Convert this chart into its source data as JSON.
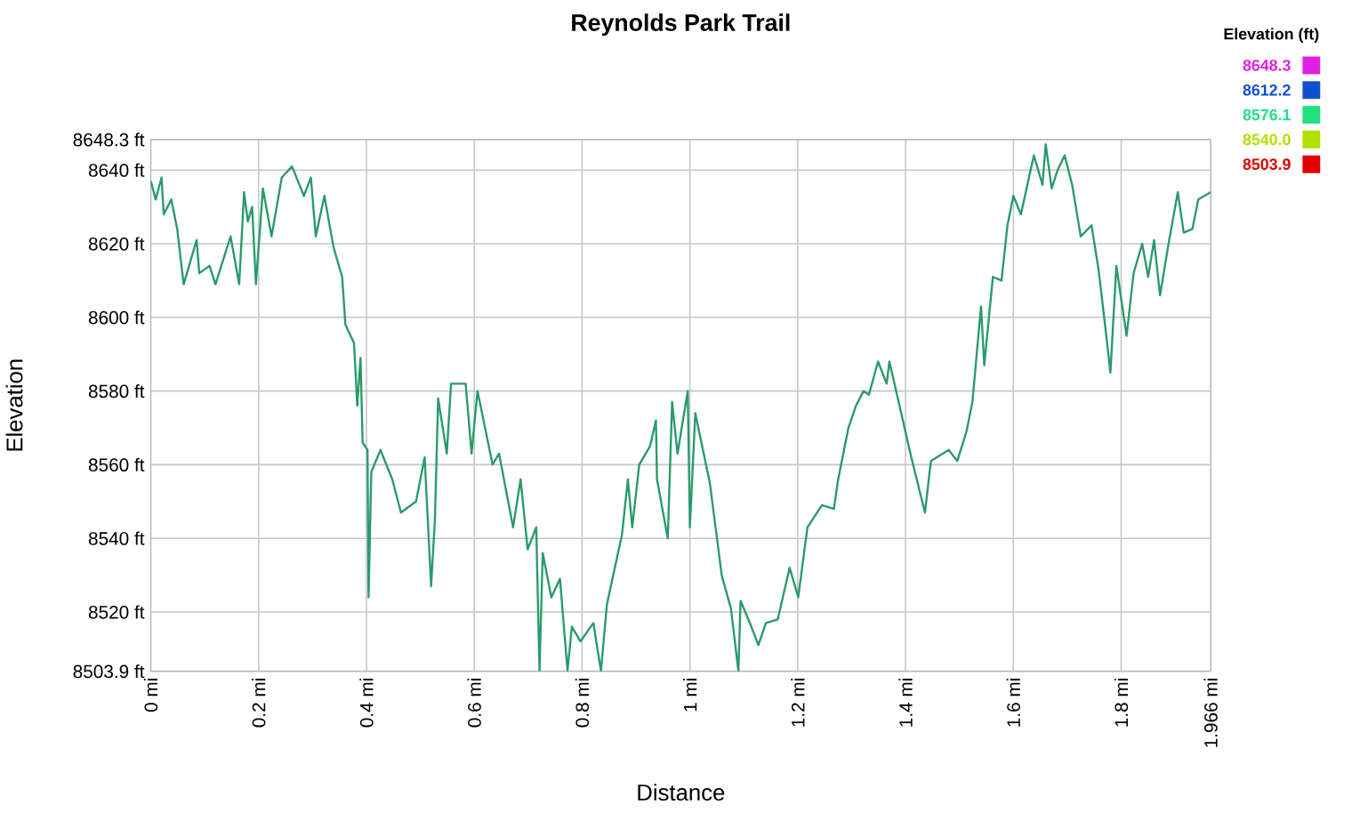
{
  "chart_data": {
    "type": "line",
    "title": "Reynolds Park Trail",
    "xlabel": "Distance",
    "ylabel": "Elevation",
    "clabel": "Elevation (ft)",
    "clim": [
      8503.9,
      8648.3
    ],
    "cticks": [
      {
        "value": 8503.9,
        "label": "8503.9"
      },
      {
        "value": 8540.0,
        "label": "8540.0"
      },
      {
        "value": 8576.1,
        "label": "8576.1"
      },
      {
        "value": 8612.2,
        "label": "8612.2"
      },
      {
        "value": 8648.3,
        "label": "8648.3"
      }
    ],
    "xlim": [
      0,
      1.966
    ],
    "ylim": [
      8503.9,
      8648.3
    ],
    "xticks": [
      {
        "value": 0,
        "label": "0 mi"
      },
      {
        "value": 0.2,
        "label": "0.2 mi"
      },
      {
        "value": 0.4,
        "label": "0.4 mi"
      },
      {
        "value": 0.6,
        "label": "0.6 mi"
      },
      {
        "value": 0.8,
        "label": "0.8 mi"
      },
      {
        "value": 1,
        "label": "1 mi"
      },
      {
        "value": 1.2,
        "label": "1.2 mi"
      },
      {
        "value": 1.4,
        "label": "1.4 mi"
      },
      {
        "value": 1.6,
        "label": "1.6 mi"
      },
      {
        "value": 1.8,
        "label": "1.8 mi"
      },
      {
        "value": 1.966,
        "label": "1.966 mi"
      }
    ],
    "yticks": [
      {
        "value": 8503.9,
        "label": "8503.9 ft"
      },
      {
        "value": 8520,
        "label": "8520 ft"
      },
      {
        "value": 8540,
        "label": "8540 ft"
      },
      {
        "value": 8560,
        "label": "8560 ft"
      },
      {
        "value": 8580,
        "label": "8580 ft"
      },
      {
        "value": 8600,
        "label": "8600 ft"
      },
      {
        "value": 8620,
        "label": "8620 ft"
      },
      {
        "value": 8640,
        "label": "8640 ft"
      },
      {
        "value": 8648.3,
        "label": "8648.3 ft"
      }
    ],
    "grid": true,
    "series": [
      {
        "color": "#2a9a6a",
        "x": [
          0,
          0.009,
          0.02,
          0.024,
          0.038,
          0.049,
          0.061,
          0.085,
          0.09,
          0.109,
          0.12,
          0.148,
          0.164,
          0.173,
          0.18,
          0.188,
          0.195,
          0.208,
          0.224,
          0.243,
          0.262,
          0.284,
          0.297,
          0.306,
          0.322,
          0.339,
          0.355,
          0.361,
          0.377,
          0.383,
          0.389,
          0.393,
          0.402,
          0.404,
          0.409,
          0.426,
          0.448,
          0.464,
          0.492,
          0.508,
          0.52,
          0.527,
          0.533,
          0.549,
          0.557,
          0.584,
          0.595,
          0.606,
          0.634,
          0.646,
          0.672,
          0.686,
          0.699,
          0.715,
          0.721,
          0.727,
          0.743,
          0.759,
          0.773,
          0.781,
          0.797,
          0.821,
          0.835,
          0.846,
          0.874,
          0.885,
          0.893,
          0.906,
          0.926,
          0.937,
          0.939,
          0.959,
          0.967,
          0.977,
          0.996,
          1.0,
          1.01,
          1.037,
          1.059,
          1.076,
          1.09,
          1.094,
          1.114,
          1.127,
          1.141,
          1.163,
          1.185,
          1.201,
          1.218,
          1.245,
          1.267,
          1.275,
          1.294,
          1.308,
          1.322,
          1.332,
          1.349,
          1.365,
          1.37,
          1.392,
          1.409,
          1.436,
          1.447,
          1.48,
          1.496,
          1.513,
          1.524,
          1.54,
          1.546,
          1.562,
          1.578,
          1.589,
          1.6,
          1.614,
          1.638,
          1.654,
          1.66,
          1.671,
          1.682,
          1.695,
          1.709,
          1.725,
          1.745,
          1.758,
          1.774,
          1.78,
          1.791,
          1.801,
          1.81,
          1.823,
          1.839,
          1.85,
          1.861,
          1.872,
          1.889,
          1.905,
          1.916,
          1.932,
          1.943,
          1.966
        ],
        "values": [
          8637,
          8632,
          8638,
          8628,
          8632,
          8624,
          8609,
          8621,
          8612,
          8614,
          8609,
          8622,
          8609,
          8634,
          8626,
          8630,
          8609,
          8635,
          8622,
          8638,
          8641,
          8633,
          8638,
          8622,
          8633,
          8619,
          8611,
          8598,
          8593,
          8576,
          8589,
          8566,
          8564,
          8524,
          8558,
          8564,
          8556,
          8547,
          8550,
          8562,
          8527,
          8545,
          8578,
          8563,
          8582,
          8582,
          8563,
          8580,
          8560,
          8563,
          8543,
          8556,
          8537,
          8543,
          8504,
          8536,
          8524,
          8529,
          8504,
          8516,
          8512,
          8517,
          8504,
          8522,
          8541,
          8556,
          8543,
          8560,
          8565,
          8572,
          8556,
          8540,
          8577,
          8563,
          8580,
          8543,
          8574,
          8555,
          8530,
          8521,
          8504,
          8523,
          8516,
          8511,
          8517,
          8518,
          8532,
          8524,
          8543,
          8549,
          8548,
          8556,
          8570,
          8576,
          8580,
          8579,
          8588,
          8582,
          8588,
          8574,
          8563,
          8547,
          8561,
          8564,
          8561,
          8569,
          8577,
          8603,
          8587,
          8611,
          8610,
          8625,
          8633,
          8628,
          8644,
          8636,
          8647,
          8635,
          8640,
          8644,
          8636,
          8622,
          8625,
          8613,
          8593,
          8585,
          8614,
          8604,
          8595,
          8612,
          8620,
          8611,
          8621,
          8606,
          8621,
          8634,
          8623,
          8624,
          8632,
          8634
        ]
      }
    ]
  }
}
